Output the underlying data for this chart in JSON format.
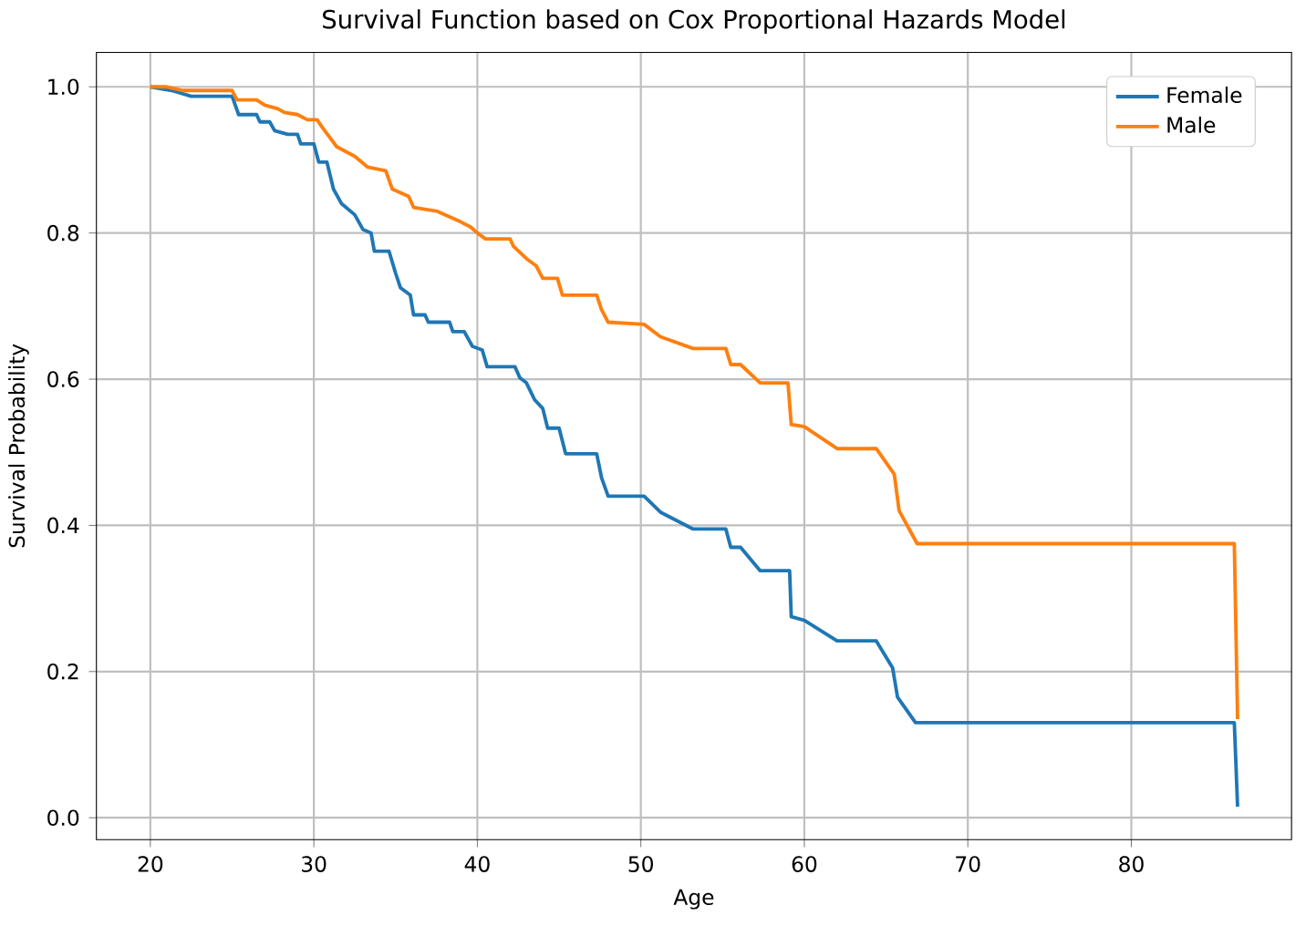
{
  "chart_data": {
    "type": "line",
    "title": "Survival Function based on Cox Proportional Hazards Model",
    "xlabel": "Age",
    "ylabel": "Survival Probability",
    "xlim": [
      16.7,
      89.8
    ],
    "ylim": [
      -0.03,
      1.047
    ],
    "xticks": [
      20,
      30,
      40,
      50,
      60,
      70,
      80
    ],
    "yticks": [
      {
        "value": 0,
        "label": "0.0"
      },
      {
        "value": 0.2,
        "label": "0.2"
      },
      {
        "value": 0.4,
        "label": "0.4"
      },
      {
        "value": 0.6,
        "label": "0.6"
      },
      {
        "value": 0.8,
        "label": "0.8"
      },
      {
        "value": 1,
        "label": "1.0"
      }
    ],
    "grid": true,
    "legend": "top right",
    "series": [
      {
        "name": "Female",
        "color": "#1f77b4",
        "x": [
          20,
          21.3,
          22.5,
          25.0,
          25.4,
          26.5,
          26.7,
          27.3,
          27.6,
          28.4,
          29.0,
          29.2,
          30.0,
          30.3,
          30.8,
          31.2,
          31.7,
          32.5,
          33.0,
          33.5,
          33.7,
          34.6,
          35.0,
          35.3,
          35.9,
          36.1,
          36.8,
          37.0,
          38.3,
          38.5,
          39.2,
          39.7,
          40.3,
          40.6,
          42.3,
          42.6,
          43.0,
          43.5,
          44.0,
          44.3,
          45.0,
          45.4,
          47.3,
          47.6,
          48.0,
          50.2,
          51.2,
          53.2,
          55.2,
          55.5,
          56.1,
          57.3,
          59.1,
          59.2,
          60.0,
          62.0,
          64.4,
          65.4,
          65.7,
          66.8,
          86.3,
          86.5
        ],
        "values": [
          1.0,
          0.995,
          0.987,
          0.987,
          0.962,
          0.962,
          0.952,
          0.952,
          0.94,
          0.935,
          0.935,
          0.922,
          0.922,
          0.897,
          0.897,
          0.86,
          0.84,
          0.825,
          0.805,
          0.8,
          0.775,
          0.775,
          0.745,
          0.725,
          0.715,
          0.688,
          0.688,
          0.678,
          0.678,
          0.665,
          0.665,
          0.645,
          0.64,
          0.617,
          0.617,
          0.602,
          0.595,
          0.572,
          0.56,
          0.533,
          0.533,
          0.498,
          0.498,
          0.465,
          0.44,
          0.44,
          0.418,
          0.395,
          0.395,
          0.37,
          0.37,
          0.338,
          0.338,
          0.275,
          0.27,
          0.242,
          0.242,
          0.205,
          0.165,
          0.13,
          0.13,
          0.015
        ]
      },
      {
        "name": "Male",
        "color": "#ff7f0e",
        "x": [
          20,
          21.0,
          22.0,
          25.0,
          25.3,
          26.5,
          27.0,
          27.8,
          28.2,
          29.0,
          29.6,
          30.2,
          30.5,
          31.0,
          31.4,
          32.5,
          33.3,
          34.4,
          34.8,
          35.8,
          36.1,
          37.5,
          38.5,
          39.0,
          39.6,
          40.0,
          40.5,
          42.0,
          42.2,
          43.0,
          43.6,
          44.0,
          44.9,
          45.2,
          47.3,
          47.6,
          48.0,
          50.2,
          51.2,
          53.2,
          55.2,
          55.5,
          56.1,
          57.3,
          59.0,
          59.2,
          60.0,
          62.0,
          64.4,
          65.5,
          65.8,
          66.9,
          86.3,
          86.5
        ],
        "values": [
          1.0,
          1.0,
          0.995,
          0.995,
          0.982,
          0.982,
          0.975,
          0.97,
          0.965,
          0.962,
          0.955,
          0.955,
          0.945,
          0.93,
          0.918,
          0.905,
          0.89,
          0.885,
          0.86,
          0.85,
          0.835,
          0.83,
          0.82,
          0.815,
          0.808,
          0.8,
          0.792,
          0.792,
          0.782,
          0.765,
          0.755,
          0.738,
          0.738,
          0.715,
          0.715,
          0.695,
          0.678,
          0.675,
          0.658,
          0.642,
          0.642,
          0.62,
          0.62,
          0.595,
          0.595,
          0.538,
          0.535,
          0.505,
          0.505,
          0.47,
          0.42,
          0.375,
          0.375,
          0.135
        ]
      }
    ]
  }
}
